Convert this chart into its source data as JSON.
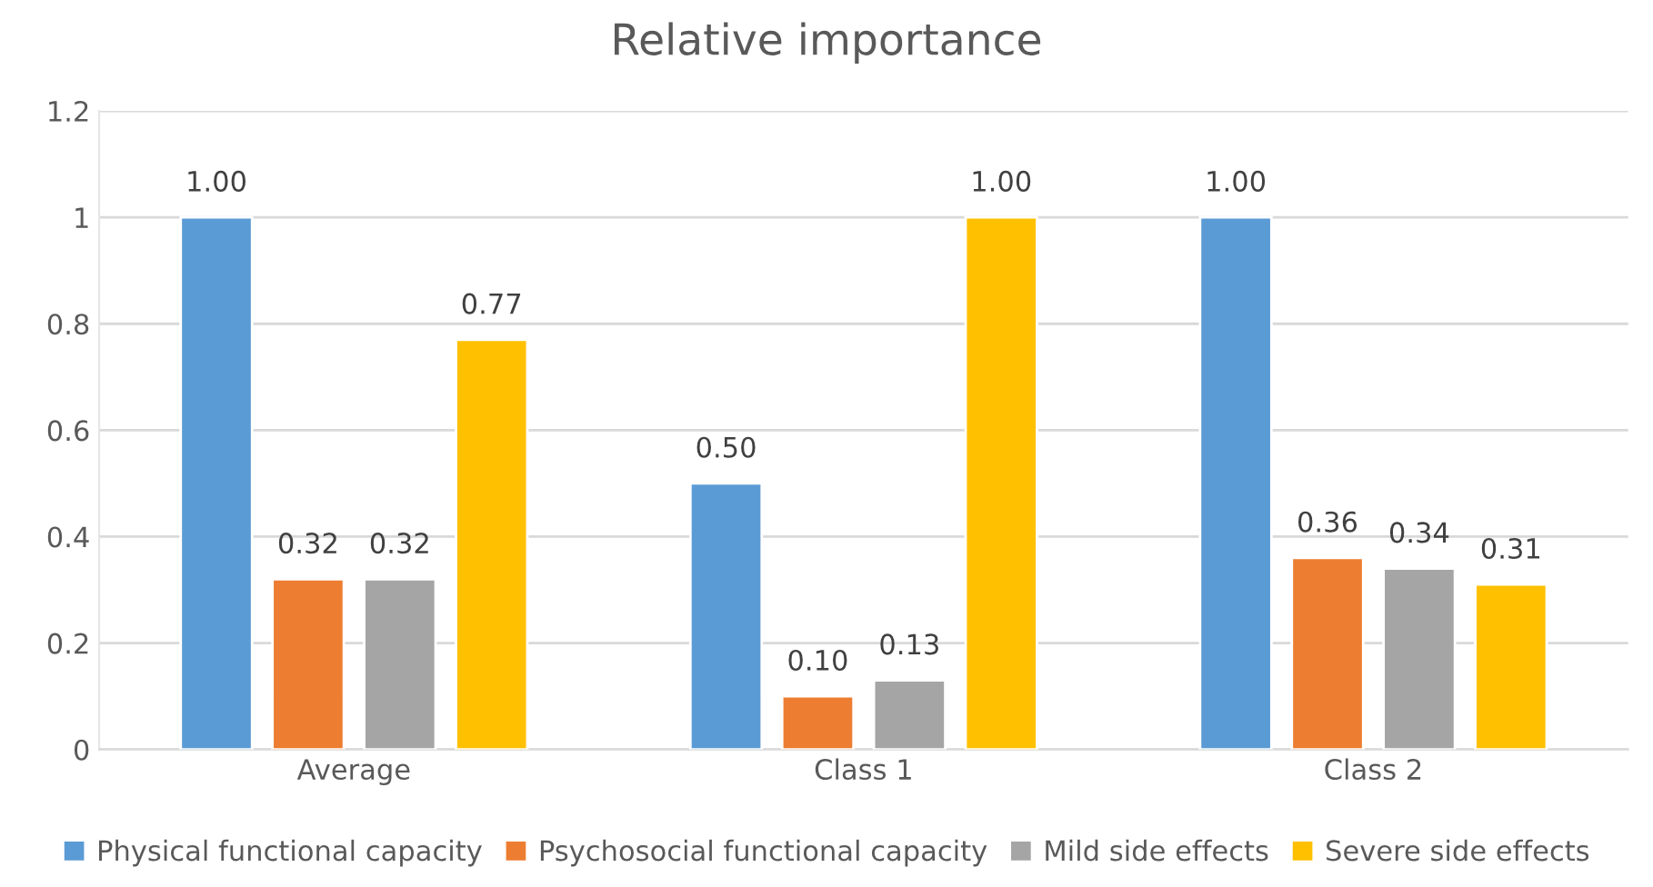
{
  "chart_data": {
    "type": "bar",
    "title": "Relative importance",
    "categories": [
      "Average",
      "Class 1",
      "Class 2"
    ],
    "series": [
      {
        "name": "Physical functional capacity",
        "color": "#5b9bd5",
        "values": [
          1.0,
          0.5,
          1.0
        ],
        "value_labels": [
          "1.00",
          "0.50",
          "1.00"
        ]
      },
      {
        "name": "Psychosocial functional capacity",
        "color": "#ed7d31",
        "values": [
          0.32,
          0.1,
          0.36
        ],
        "value_labels": [
          "0.32",
          "0.10",
          "0.36"
        ]
      },
      {
        "name": "Mild side effects",
        "color": "#a5a5a5",
        "values": [
          0.32,
          0.13,
          0.34
        ],
        "value_labels": [
          "0.32",
          "0.13",
          "0.34"
        ]
      },
      {
        "name": "Severe side effects",
        "color": "#ffc000",
        "values": [
          0.77,
          1.0,
          0.31
        ],
        "value_labels": [
          "0.77",
          "1.00",
          "0.31"
        ]
      }
    ],
    "ylim": [
      0,
      1.2
    ],
    "yticks": [
      0,
      0.2,
      0.4,
      0.6,
      0.8,
      1,
      1.2
    ],
    "grid": "y",
    "legend": "bottom"
  }
}
